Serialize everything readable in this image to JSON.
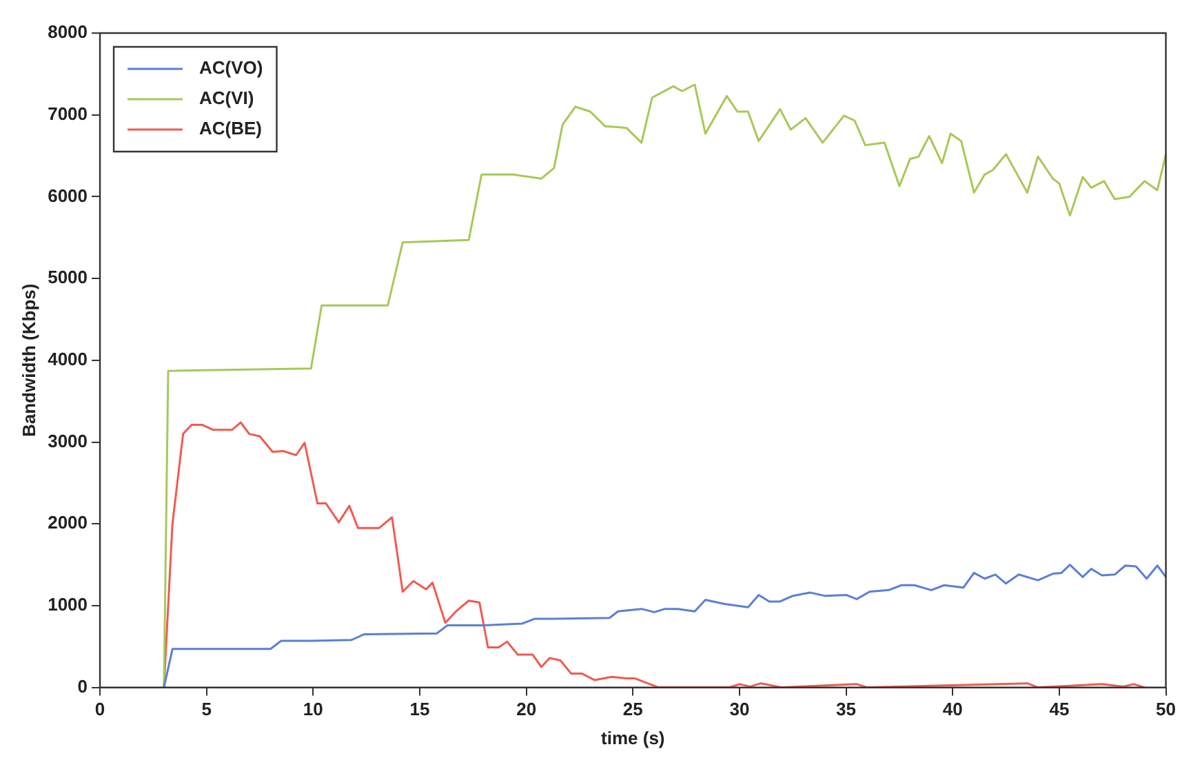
{
  "chart_data": {
    "type": "line",
    "xlabel": "time (s)",
    "ylabel": "Bandwidth (Kbps)",
    "xlim": [
      0,
      50
    ],
    "ylim": [
      0,
      8000
    ],
    "xticks": [
      0,
      5,
      10,
      15,
      20,
      25,
      30,
      35,
      40,
      45,
      50
    ],
    "yticks": [
      0,
      1000,
      2000,
      3000,
      4000,
      5000,
      6000,
      7000,
      8000
    ],
    "grid": false,
    "legend": "top left",
    "marker": "none",
    "line_style": "solid",
    "series": [
      {
        "name": "AC(VO)",
        "color": "#5b7fd6",
        "x": [
          3,
          3.4,
          8,
          8.5,
          9.9,
          11.8,
          12.4,
          15.8,
          16.3,
          18,
          19.8,
          20.4,
          21.3,
          23.9,
          24.3,
          25.4,
          26,
          26.5,
          27.1,
          27.9,
          28.4,
          29.3,
          30.4,
          30.9,
          31.4,
          31.9,
          32.5,
          33.3,
          34,
          35,
          35.5,
          36.1,
          37,
          37.6,
          38.2,
          39,
          39.6,
          40.5,
          41,
          41.5,
          42,
          42.5,
          43.1,
          44,
          44.7,
          45.1,
          45.5,
          46.1,
          46.5,
          47,
          47.6,
          48.1,
          48.6,
          49.1,
          49.6,
          50
        ],
        "values": [
          0,
          470,
          470,
          570,
          570,
          580,
          650,
          660,
          760,
          760,
          780,
          840,
          840,
          850,
          930,
          960,
          920,
          960,
          960,
          930,
          1070,
          1020,
          980,
          1130,
          1050,
          1050,
          1120,
          1160,
          1120,
          1130,
          1080,
          1170,
          1190,
          1250,
          1250,
          1190,
          1250,
          1220,
          1400,
          1330,
          1380,
          1270,
          1380,
          1310,
          1390,
          1400,
          1500,
          1350,
          1450,
          1370,
          1380,
          1490,
          1480,
          1330,
          1490,
          1350
        ]
      },
      {
        "name": "AC(VI)",
        "color": "#a8c858",
        "x": [
          3,
          3.2,
          9.9,
          10.4,
          13.5,
          14.2,
          17.3,
          17.9,
          19.4,
          20.7,
          21.3,
          21.7,
          22.3,
          23,
          23.7,
          24.3,
          24.7,
          25.4,
          25.9,
          26.9,
          27.3,
          27.9,
          28.4,
          29.4,
          29.9,
          30.4,
          30.9,
          31.9,
          32.4,
          33.1,
          33.9,
          34.9,
          35.4,
          35.9,
          36.8,
          37.5,
          38,
          38.4,
          38.9,
          39.5,
          39.9,
          40.4,
          41,
          41.5,
          41.9,
          42.5,
          43.5,
          44,
          44.7,
          45,
          45.5,
          46.1,
          46.5,
          47.1,
          47.6,
          48.3,
          49,
          49.6,
          50
        ],
        "values": [
          0,
          3870,
          3900,
          4670,
          4670,
          5440,
          5470,
          6270,
          6270,
          6220,
          6350,
          6880,
          7100,
          7040,
          6860,
          6850,
          6840,
          6660,
          7210,
          7350,
          7290,
          7370,
          6770,
          7230,
          7040,
          7040,
          6680,
          7070,
          6820,
          6960,
          6660,
          6990,
          6930,
          6630,
          6660,
          6130,
          6460,
          6490,
          6740,
          6410,
          6770,
          6680,
          6050,
          6270,
          6330,
          6520,
          6050,
          6490,
          6220,
          6160,
          5770,
          6240,
          6110,
          6190,
          5970,
          6000,
          6190,
          6080,
          6520
        ]
      },
      {
        "name": "AC(BE)",
        "color": "#f05a50",
        "x": [
          3,
          3.4,
          3.9,
          4.3,
          4.8,
          5.3,
          5.8,
          6.2,
          6.6,
          7,
          7.5,
          8.1,
          8.6,
          9.2,
          9.6,
          10.2,
          10.6,
          11.2,
          11.7,
          12.1,
          13.1,
          13.7,
          14.2,
          14.7,
          15.3,
          15.6,
          16.2,
          16.7,
          17.3,
          17.8,
          18.2,
          18.7,
          19.1,
          19.6,
          20.3,
          20.7,
          21.1,
          21.6,
          22.1,
          22.6,
          23.2,
          24,
          24.7,
          25.1,
          26.2,
          29.5,
          30,
          30.5,
          31,
          32,
          35.5,
          36,
          43.5,
          44,
          47,
          48,
          48.5,
          49
        ],
        "values": [
          0,
          2000,
          3100,
          3210,
          3210,
          3150,
          3150,
          3150,
          3240,
          3100,
          3070,
          2880,
          2890,
          2840,
          2990,
          2250,
          2250,
          2020,
          2220,
          1950,
          1950,
          2080,
          1170,
          1300,
          1200,
          1280,
          790,
          930,
          1060,
          1040,
          490,
          490,
          560,
          400,
          400,
          250,
          360,
          330,
          170,
          170,
          90,
          130,
          110,
          110,
          0,
          0,
          40,
          10,
          50,
          0,
          40,
          0,
          50,
          0,
          40,
          10,
          40,
          0
        ]
      }
    ]
  }
}
